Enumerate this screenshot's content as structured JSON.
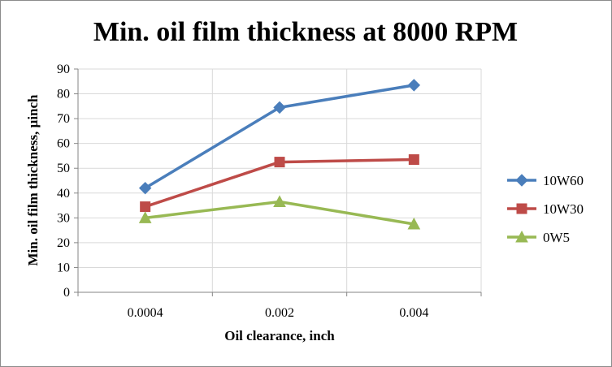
{
  "chart_data": {
    "type": "line",
    "title": "Min. oil film thickness at 8000 RPM",
    "xlabel": "Oil clearance, inch",
    "ylabel": "Min. oil film thickness, µinch",
    "categories": [
      "0.0004",
      "0.002",
      "0.004"
    ],
    "ylim": [
      0,
      90
    ],
    "yticks": [
      0,
      10,
      20,
      30,
      40,
      50,
      60,
      70,
      80,
      90
    ],
    "grid": true,
    "legend_position": "right",
    "series": [
      {
        "name": "10W60",
        "values": [
          42,
          74.5,
          83.5
        ],
        "color": "#4a7ebb",
        "marker": "diamond"
      },
      {
        "name": "10W30",
        "values": [
          34.5,
          52.5,
          53.5
        ],
        "color": "#be4b48",
        "marker": "square"
      },
      {
        "name": "0W5",
        "values": [
          30,
          36.5,
          27.5
        ],
        "color": "#98b954",
        "marker": "triangle"
      }
    ]
  }
}
